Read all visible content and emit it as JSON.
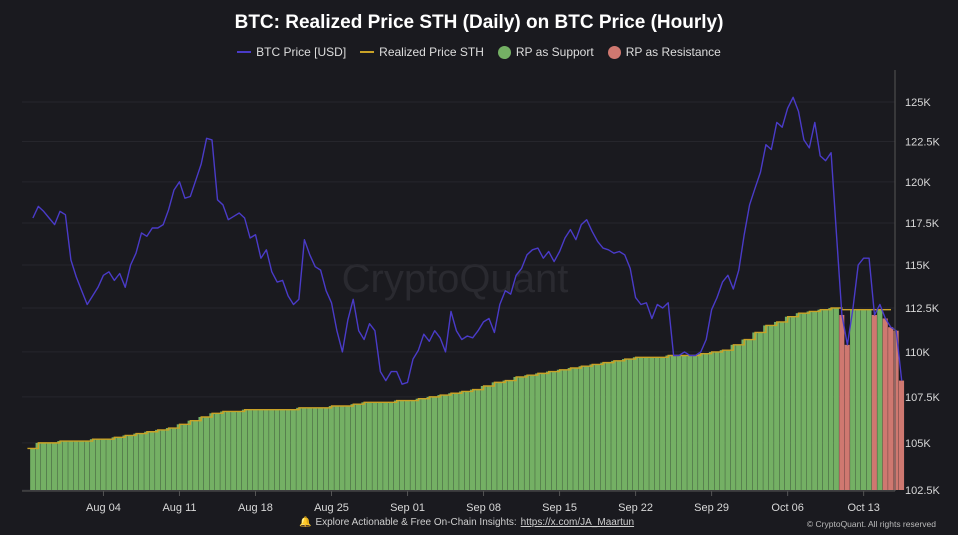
{
  "header": {
    "title": "BTC: Realized Price STH (Daily) on BTC Price (Hourly)"
  },
  "legend": [
    {
      "label": "BTC Price [USD]",
      "color": "#4a3bc8",
      "kind": "line"
    },
    {
      "label": "Realized Price STH",
      "color": "#c9a227",
      "kind": "line"
    },
    {
      "label": "RP as Support",
      "color": "#74b064",
      "kind": "dot"
    },
    {
      "label": "RP as Resistance",
      "color": "#cf7870",
      "kind": "dot"
    }
  ],
  "watermark": "CryptoQuant",
  "footer": {
    "text": "Explore Actionable & Free On-Chain Insights:",
    "link": "https://x.com/JA_Maartun",
    "copyright": "© CryptoQuant. All rights reserved"
  },
  "chart_data": {
    "type": "line",
    "title": "BTC: Realized Price STH (Daily) on BTC Price (Hourly)",
    "y_scale": "log",
    "ylim": [
      102500,
      126000
    ],
    "y_axis_position": "right",
    "y_ticks": [
      "102.5K",
      "105K",
      "107.5K",
      "110K",
      "112.5K",
      "115K",
      "117.5K",
      "120K",
      "122.5K",
      "125K"
    ],
    "y_tick_values": [
      102500,
      105000,
      107500,
      110000,
      112500,
      115000,
      117500,
      120000,
      122500,
      125000
    ],
    "x_ticks": [
      "Aug 04",
      "Aug 11",
      "Aug 18",
      "Aug 25",
      "Sep 01",
      "Sep 08",
      "Sep 15",
      "Sep 22",
      "Sep 29",
      "Oct 06",
      "Oct 13"
    ],
    "x_tick_dates": [
      "08-04",
      "08-11",
      "08-18",
      "08-25",
      "09-01",
      "09-08",
      "09-15",
      "09-22",
      "09-29",
      "10-06",
      "10-13"
    ],
    "grid": "horizontal",
    "legend_position": "top",
    "price_series": {
      "name": "BTC Price [USD]",
      "start": "07-28 12:00",
      "interval_hours": 12,
      "values_k": [
        117.8,
        118.5,
        118.2,
        117.8,
        117.4,
        118.2,
        118.0,
        115.3,
        114.3,
        113.5,
        112.7,
        113.2,
        113.7,
        114.4,
        114.6,
        114.1,
        114.5,
        113.7,
        115.0,
        115.7,
        116.9,
        116.7,
        117.2,
        117.2,
        117.4,
        118.3,
        119.5,
        120.0,
        119.0,
        119.1,
        120.1,
        121.1,
        122.7,
        122.6,
        118.9,
        118.6,
        117.7,
        117.9,
        118.1,
        117.8,
        116.6,
        116.8,
        115.4,
        115.9,
        114.6,
        114.0,
        114.1,
        113.2,
        112.7,
        113.0,
        116.5,
        115.6,
        114.9,
        114.7,
        113.5,
        112.8,
        111.2,
        110.0,
        111.8,
        113.0,
        111.2,
        110.7,
        111.6,
        111.2,
        108.9,
        108.4,
        108.9,
        108.9,
        108.2,
        108.3,
        109.6,
        110.1,
        111.0,
        110.6,
        111.2,
        110.8,
        110.0,
        112.3,
        111.2,
        110.7,
        110.9,
        110.8,
        111.2,
        111.7,
        111.9,
        111.1,
        112.7,
        113.5,
        113.3,
        114.4,
        114.8,
        115.6,
        115.9,
        116.0,
        115.4,
        115.8,
        115.2,
        115.8,
        116.6,
        117.1,
        116.5,
        117.4,
        117.7,
        117.0,
        116.4,
        116.0,
        115.9,
        115.7,
        115.8,
        115.6,
        114.8,
        113.1,
        112.7,
        112.8,
        111.9,
        112.7,
        112.5,
        112.8,
        109.8,
        109.8,
        110.0,
        109.8,
        109.8,
        110.0,
        110.7,
        112.4,
        113.1,
        114.0,
        114.4,
        113.6,
        114.7,
        116.8,
        118.6,
        119.6,
        120.6,
        122.3,
        122.0,
        123.7,
        123.4,
        124.6,
        125.3,
        124.4,
        122.6,
        122.1,
        123.7,
        121.6,
        121.3,
        121.8,
        116.8,
        112.1,
        110.4,
        112.4,
        115.0,
        115.4,
        115.4,
        112.1,
        112.7,
        111.9,
        111.4,
        111.2,
        108.4
      ]
    },
    "realized_price_series": {
      "name": "Realized Price STH",
      "start": "07-28",
      "interval_hours": 24,
      "values_k": [
        104.7,
        105.0,
        105.0,
        105.1,
        105.1,
        105.1,
        105.2,
        105.2,
        105.3,
        105.4,
        105.5,
        105.6,
        105.7,
        105.8,
        106.0,
        106.2,
        106.4,
        106.6,
        106.7,
        106.7,
        106.8,
        106.8,
        106.8,
        106.8,
        106.8,
        106.9,
        106.9,
        106.9,
        107.0,
        107.0,
        107.1,
        107.2,
        107.2,
        107.2,
        107.3,
        107.3,
        107.4,
        107.5,
        107.6,
        107.7,
        107.8,
        107.9,
        108.1,
        108.3,
        108.4,
        108.6,
        108.7,
        108.8,
        108.9,
        109.0,
        109.1,
        109.2,
        109.3,
        109.4,
        109.5,
        109.6,
        109.7,
        109.7,
        109.7,
        109.8,
        109.8,
        109.8,
        109.9,
        110.0,
        110.1,
        110.4,
        110.7,
        111.1,
        111.5,
        111.7,
        112.0,
        112.2,
        112.3,
        112.4,
        112.5,
        112.4,
        112.4,
        112.4,
        112.4,
        112.4,
        112.3
      ]
    },
    "bars_rule": "green when price >= Realized Price STH (RP as Support), red otherwise (RP as Resistance)"
  }
}
